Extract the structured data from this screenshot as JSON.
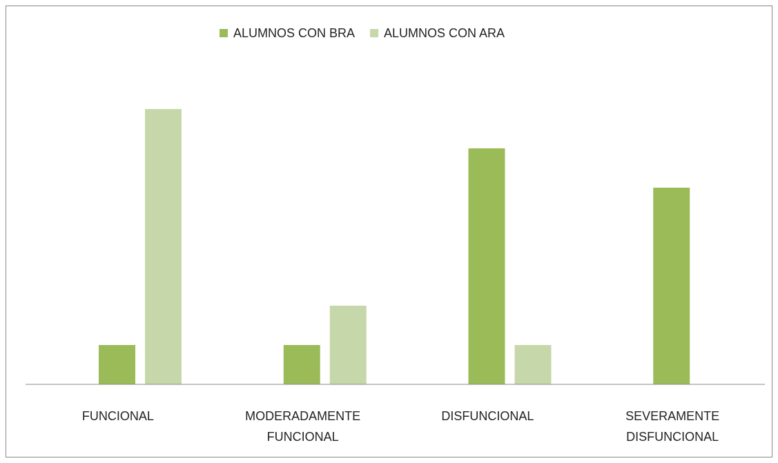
{
  "chart_data": {
    "type": "bar",
    "categories": [
      "FUNCIONAL",
      "MODERADAMENTE FUNCIONAL",
      "DISFUNCIONAL",
      "SEVERAMENTE DISFUNCIONAL"
    ],
    "series": [
      {
        "name": "ALUMNOS CON BRA",
        "color": "#9bbb59",
        "values": [
          1,
          1,
          6,
          5
        ]
      },
      {
        "name": "ALUMNOS CON ARA",
        "color": "#c6d8aa",
        "values": [
          7,
          2,
          1,
          0
        ]
      }
    ],
    "ylim": [
      0,
      8
    ],
    "legend": "top"
  }
}
